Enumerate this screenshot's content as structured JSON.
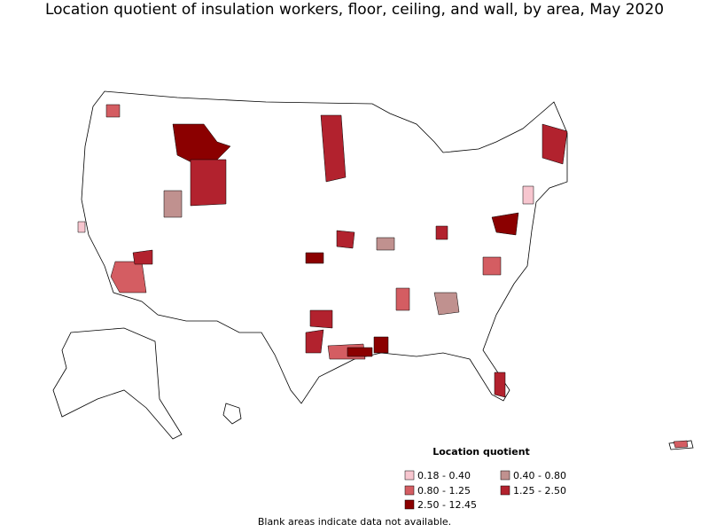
{
  "title": "Location quotient of insulation workers, floor, ceiling, and wall, by area, May 2020",
  "legend": {
    "title": "Location quotient",
    "items": [
      {
        "label": "0.18 - 0.40",
        "color": "#f7c6cf"
      },
      {
        "label": "0.40 - 0.80",
        "color": "#c0918f"
      },
      {
        "label": "0.80 - 1.25",
        "color": "#d45d62"
      },
      {
        "label": "1.25 - 2.50",
        "color": "#b2222e"
      },
      {
        "label": "2.50 - 12.45",
        "color": "#8b0000"
      }
    ]
  },
  "footnote": "Blank areas indicate data not available."
}
